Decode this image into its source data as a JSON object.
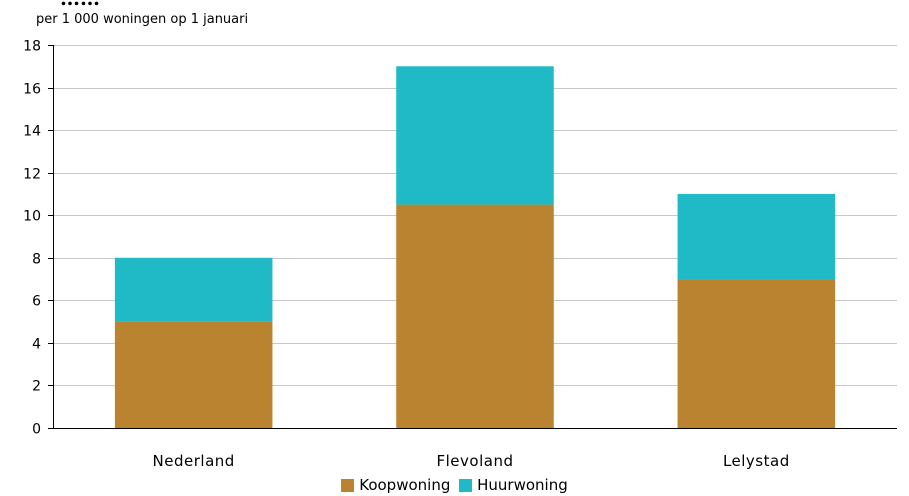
{
  "header": {
    "clipped_title": "……",
    "subtitle": "per 1 000 woningen op 1 januari"
  },
  "chart_data": {
    "type": "bar",
    "stacked": true,
    "categories": [
      "Nederland",
      "Flevoland",
      "Lelystad"
    ],
    "series": [
      {
        "name": "Koopwoning",
        "color": "#b98330",
        "values": [
          5,
          10.5,
          7
        ]
      },
      {
        "name": "Huurwoning",
        "color": "#1fbac5",
        "values": [
          3,
          6.5,
          4
        ]
      }
    ],
    "ylim": [
      0,
      18
    ],
    "yticks": [
      "0",
      "2",
      "4",
      "6",
      "8",
      "10",
      "12",
      "14",
      "16",
      "18"
    ],
    "grid": true,
    "legend": "bottom",
    "title": "",
    "xlabel": "",
    "ylabel": ""
  }
}
